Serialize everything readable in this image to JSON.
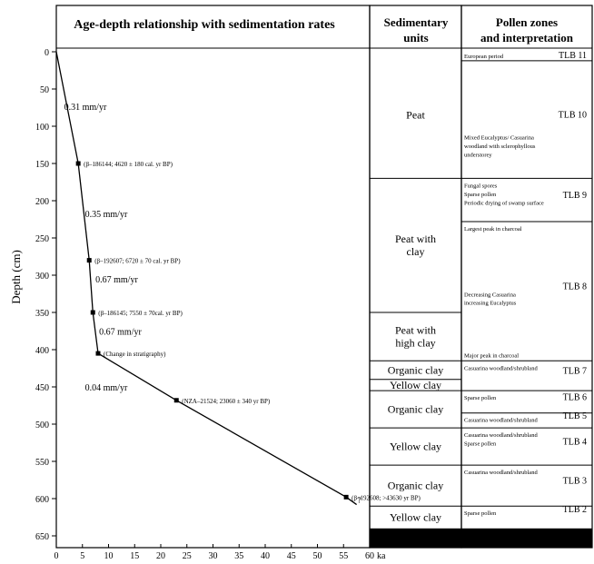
{
  "chart_data": {
    "type": "line",
    "title": "Age-depth relationship with sedimentation rates",
    "ylabel": "Depth (cm)",
    "xlabel": "",
    "x_unit": "ka",
    "xlim": [
      0,
      60
    ],
    "ylim": [
      650,
      0
    ],
    "x_ticks": [
      0,
      5,
      10,
      15,
      20,
      25,
      30,
      35,
      40,
      45,
      50,
      55,
      60
    ],
    "y_ticks": [
      0,
      50,
      100,
      150,
      200,
      250,
      300,
      350,
      400,
      450,
      500,
      550,
      600,
      650
    ],
    "series": [
      {
        "points": [
          {
            "x": 0,
            "y": 0
          },
          {
            "x": 4.2,
            "y": 150
          },
          {
            "x": 6.3,
            "y": 280
          },
          {
            "x": 7.0,
            "y": 350
          },
          {
            "x": 8.0,
            "y": 405
          },
          {
            "x": 23.0,
            "y": 468
          },
          {
            "x": 55.5,
            "y": 598
          },
          {
            "x": 57.5,
            "y": 608
          }
        ]
      }
    ],
    "dates": [
      {
        "x": 4.2,
        "y": 150,
        "label": "(β–186144; 4620 ± 180 cal. yr BP)"
      },
      {
        "x": 6.3,
        "y": 280,
        "label": "(β–192607; 6720 ± 70 cal. yr BP)"
      },
      {
        "x": 7.0,
        "y": 350,
        "label": "(β–186145; 7550 ± 70cal. yr BP)"
      },
      {
        "x": 8.0,
        "y": 405,
        "label": "(Change in stratigraphy)"
      },
      {
        "x": 23.0,
        "y": 468,
        "label": "(NZA–21524; 23060 ± 340 yr BP)"
      },
      {
        "x": 55.5,
        "y": 598,
        "label": "(β–192608; >43630 yr BP)"
      }
    ],
    "end_marker": {
      "x": 57.5,
      "y": 608,
      "label": "?"
    },
    "rates": [
      {
        "label": "0.31 mm/yr",
        "x": 1.5,
        "y": 78
      },
      {
        "label": "0.35 mm/yr",
        "x": 5.5,
        "y": 222
      },
      {
        "label": "0.67 mm/yr",
        "x": 7.5,
        "y": 310
      },
      {
        "label": "0.67 mm/yr",
        "x": 8.2,
        "y": 380
      },
      {
        "label": "0.04 mm/yr",
        "x": 5.5,
        "y": 455
      }
    ]
  },
  "units": {
    "title": "Sedimentary units",
    "items": [
      {
        "label": "Peat",
        "top": 0,
        "bottom": 170
      },
      {
        "label": "Peat with clay",
        "top": 170,
        "bottom": 350
      },
      {
        "label": "Peat with high clay",
        "top": 350,
        "bottom": 415
      },
      {
        "label": "Organic clay",
        "top": 415,
        "bottom": 440
      },
      {
        "label": "Yellow clay",
        "top": 440,
        "bottom": 455
      },
      {
        "label": "Organic clay",
        "top": 455,
        "bottom": 505
      },
      {
        "label": "Yellow clay",
        "top": 505,
        "bottom": 555
      },
      {
        "label": "Organic clay",
        "top": 555,
        "bottom": 610
      },
      {
        "label": "Yellow clay",
        "top": 610,
        "bottom": 640
      }
    ],
    "base": {
      "top": 640,
      "bottom": 660
    }
  },
  "pollen": {
    "title_line1": "Pollen zones",
    "title_line2": "and interpretation",
    "zones": [
      {
        "name": "TLB 11",
        "top": 0,
        "bottom": 12,
        "notes": [
          "European period"
        ]
      },
      {
        "name": "TLB 10",
        "top": 12,
        "bottom": 170,
        "notes": [
          "Mixed Eucalyptus/ Casuarina",
          "woodland with sclerophyllous",
          "understorey"
        ]
      },
      {
        "name": "TLB 9",
        "top": 170,
        "bottom": 228,
        "notes": [
          "Fungal spores",
          "Sparse pollen",
          "Periodic drying of swamp surface"
        ]
      },
      {
        "name": "TLB 8",
        "top": 228,
        "bottom": 415,
        "notes": [
          "Largest peak in charcoal",
          "Decreasing Casuarina",
          "increasing Eucalyptus",
          "Major peak in charcoal"
        ]
      },
      {
        "name": "TLB 7",
        "top": 415,
        "bottom": 455,
        "notes": [
          "Casuarina woodland/shrubland"
        ]
      },
      {
        "name": "TLB 6",
        "top": 455,
        "bottom": 485,
        "notes": [
          "Sparse pollen"
        ]
      },
      {
        "name": "TLB 5",
        "top": 485,
        "bottom": 505,
        "notes": [
          "Casuarina woodland/shrubland"
        ]
      },
      {
        "name": "TLB 4",
        "top": 505,
        "bottom": 555,
        "notes": [
          "Casuarina woodland/shrubland",
          "Sparse pollen"
        ]
      },
      {
        "name": "TLB 3",
        "top": 555,
        "bottom": 610,
        "notes": [
          "Casuarina woodland/shrubland"
        ]
      },
      {
        "name": "TLB 2",
        "top": 610,
        "bottom": 632,
        "notes": [
          "Sparse pollen"
        ]
      }
    ]
  }
}
